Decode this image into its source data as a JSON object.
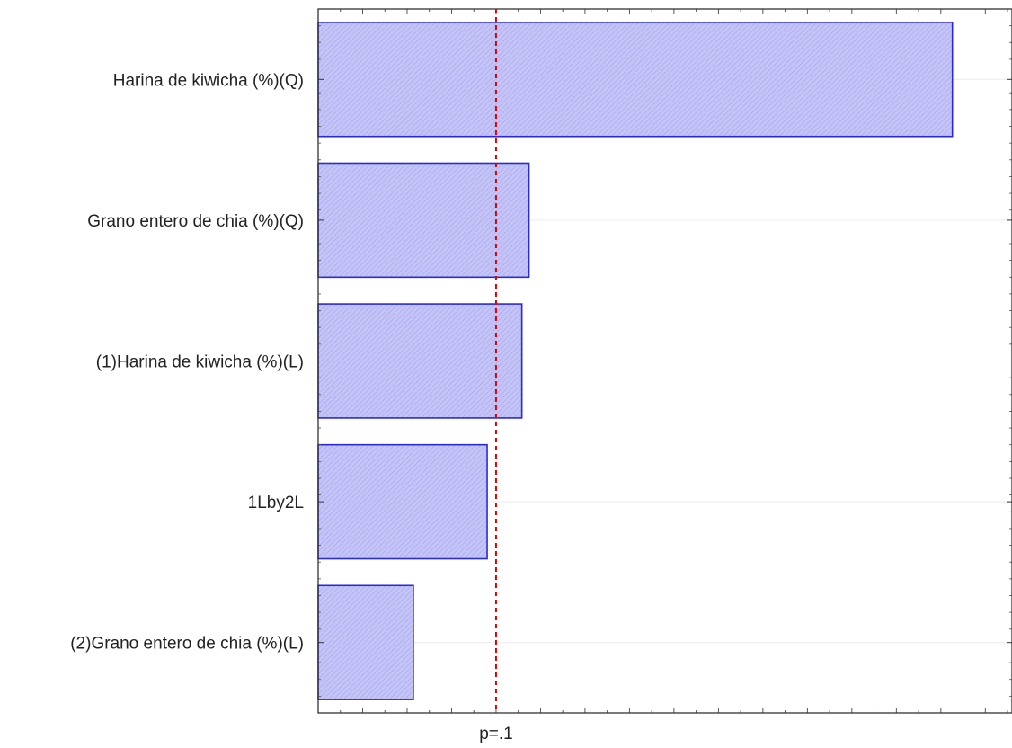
{
  "chart_data": {
    "type": "bar",
    "orientation": "horizontal",
    "categories": [
      "Harina de kiwicha (%)(Q)",
      "Grano entero de chia (%)(Q)",
      "(1)Harina de kiwicha (%)(L)",
      "1Lby2L",
      "(2)Grano entero de chia (%)(L)"
    ],
    "values": [
      7.13,
      2.37,
      2.29,
      1.9,
      1.07
    ],
    "xlim": [
      0,
      7.8
    ],
    "reference_line": {
      "value": 2.0,
      "label": "p=.1",
      "color": "#e00000",
      "style": "dashed"
    },
    "bar_fill": "#bdbdf5",
    "bar_stroke": "#2a2ad6",
    "title": "",
    "xlabel": "",
    "ylabel": "",
    "grid": "horizontal minor"
  }
}
